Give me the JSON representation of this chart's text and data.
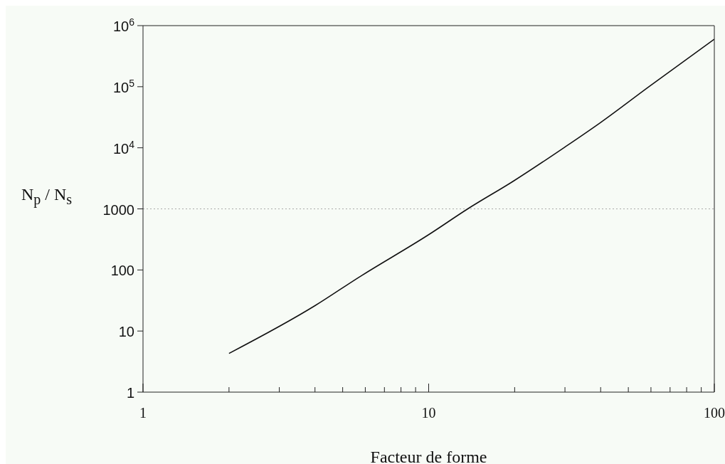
{
  "chart_data": {
    "type": "line",
    "xlabel": "Facteur de forme",
    "ylabel": "N$_{p}$ / N$_{s}$",
    "log": "xy",
    "x": [
      2,
      4,
      5.7,
      10,
      13.7,
      19.8,
      30,
      40,
      59,
      100
    ],
    "series": [
      {
        "color": "#111111",
        "values": [
          4.3,
          26,
          76,
          378,
          1000,
          2850,
          10300,
          26000,
          100000,
          600000
        ]
      }
    ],
    "xlim": [
      1,
      100
    ],
    "xticks": [
      1,
      {
        "value": 2,
        "label": null
      },
      {
        "value": 3,
        "label": null
      },
      {
        "value": 4,
        "label": null
      },
      {
        "value": 5,
        "label": null
      },
      {
        "value": 6,
        "label": null
      },
      {
        "value": 7,
        "label": null
      },
      {
        "value": 8,
        "label": null
      },
      {
        "value": 9,
        "label": null
      },
      10,
      {
        "value": 20,
        "label": null
      },
      {
        "value": 30,
        "label": null
      },
      {
        "value": 40,
        "label": null
      },
      {
        "value": 50,
        "label": null
      },
      {
        "value": 60,
        "label": null
      },
      {
        "value": 70,
        "label": null
      },
      {
        "value": 80,
        "label": null
      },
      {
        "value": 90,
        "label": null
      },
      100
    ],
    "ylim": [
      1,
      1000000
    ],
    "yticks": [
      1,
      10,
      100,
      1000,
      {
        "value": 10000,
        "label": "10$^{4}$"
      },
      {
        "value": 100000,
        "label": "10$^{5}$"
      },
      {
        "value": 1000000,
        "label": "10$^{6}$"
      }
    ],
    "ref_lines": [
      {
        "axis": "y",
        "value": 1000,
        "color": "#aaaaaa",
        "line_style": "dotted"
      }
    ],
    "grid": false,
    "marker": "none",
    "line_style": "solid"
  }
}
